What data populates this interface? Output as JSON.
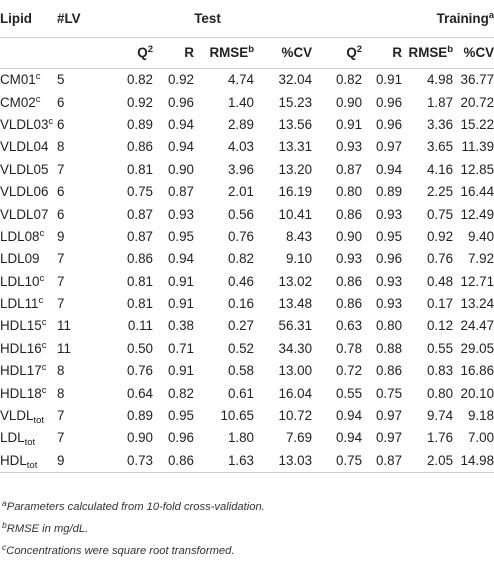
{
  "header": {
    "lipid": "Lipid",
    "lv": "#LV",
    "test_group": "Test",
    "training_group": "Training",
    "training_sup": "a",
    "columns": {
      "q2_base": "Q",
      "q2_sup": "2",
      "r": "R",
      "rmse_base": "RMSE",
      "rmse_sup": "b",
      "cv": "%CV"
    }
  },
  "rows": [
    {
      "name": "CM01",
      "sup": "c",
      "sub": "",
      "lv": "5",
      "test": [
        "0.82",
        "0.92",
        "4.74",
        "32.04"
      ],
      "train": [
        "0.82",
        "0.91",
        "4.98",
        "36.77"
      ]
    },
    {
      "name": "CM02",
      "sup": "c",
      "sub": "",
      "lv": "6",
      "test": [
        "0.92",
        "0.96",
        "1.40",
        "15.23"
      ],
      "train": [
        "0.90",
        "0.96",
        "1.87",
        "20.72"
      ]
    },
    {
      "name": "VLDL03",
      "sup": "c",
      "sub": "",
      "lv": "6",
      "test": [
        "0.89",
        "0.94",
        "2.89",
        "13.56"
      ],
      "train": [
        "0.91",
        "0.96",
        "3.36",
        "15.22"
      ]
    },
    {
      "name": "VLDL04",
      "sup": "",
      "sub": "",
      "lv": "8",
      "test": [
        "0.86",
        "0.94",
        "4.03",
        "13.31"
      ],
      "train": [
        "0.93",
        "0.97",
        "3.65",
        "11.39"
      ]
    },
    {
      "name": "VLDL05",
      "sup": "",
      "sub": "",
      "lv": "7",
      "test": [
        "0.81",
        "0.90",
        "3.96",
        "13.20"
      ],
      "train": [
        "0.87",
        "0.94",
        "4.16",
        "12.85"
      ]
    },
    {
      "name": "VLDL06",
      "sup": "",
      "sub": "",
      "lv": "6",
      "test": [
        "0.75",
        "0.87",
        "2.01",
        "16.19"
      ],
      "train": [
        "0.80",
        "0.89",
        "2.25",
        "16.44"
      ]
    },
    {
      "name": "VLDL07",
      "sup": "",
      "sub": "",
      "lv": "6",
      "test": [
        "0.87",
        "0.93",
        "0.56",
        "10.41"
      ],
      "train": [
        "0.86",
        "0.93",
        "0.75",
        "12.49"
      ]
    },
    {
      "name": "LDL08",
      "sup": "c",
      "sub": "",
      "lv": "9",
      "test": [
        "0.87",
        "0.95",
        "0.76",
        "8.43"
      ],
      "train": [
        "0.90",
        "0.95",
        "0.92",
        "9.40"
      ]
    },
    {
      "name": "LDL09",
      "sup": "",
      "sub": "",
      "lv": "7",
      "test": [
        "0.86",
        "0.94",
        "0.82",
        "9.10"
      ],
      "train": [
        "0.93",
        "0.96",
        "0.76",
        "7.92"
      ]
    },
    {
      "name": "LDL10",
      "sup": "c",
      "sub": "",
      "lv": "7",
      "test": [
        "0.81",
        "0.91",
        "0.46",
        "13.02"
      ],
      "train": [
        "0.86",
        "0.93",
        "0.48",
        "12.71"
      ]
    },
    {
      "name": "LDL11",
      "sup": "c",
      "sub": "",
      "lv": "7",
      "test": [
        "0.81",
        "0.91",
        "0.16",
        "13.48"
      ],
      "train": [
        "0.86",
        "0.93",
        "0.17",
        "13.24"
      ]
    },
    {
      "name": "HDL15",
      "sup": "c",
      "sub": "",
      "lv": "11",
      "test": [
        "0.11",
        "0.38",
        "0.27",
        "56.31"
      ],
      "train": [
        "0.63",
        "0.80",
        "0.12",
        "24.47"
      ]
    },
    {
      "name": "HDL16",
      "sup": "c",
      "sub": "",
      "lv": "11",
      "test": [
        "0.50",
        "0.71",
        "0.52",
        "34.30"
      ],
      "train": [
        "0.78",
        "0.88",
        "0.55",
        "29.05"
      ]
    },
    {
      "name": "HDL17",
      "sup": "c",
      "sub": "",
      "lv": "8",
      "test": [
        "0.76",
        "0.91",
        "0.58",
        "13.00"
      ],
      "train": [
        "0.72",
        "0.86",
        "0.83",
        "16.86"
      ]
    },
    {
      "name": "HDL18",
      "sup": "c",
      "sub": "",
      "lv": "8",
      "test": [
        "0.64",
        "0.82",
        "0.61",
        "16.04"
      ],
      "train": [
        "0.55",
        "0.75",
        "0.80",
        "20.10"
      ]
    },
    {
      "name": "VLDL",
      "sup": "",
      "sub": "tot",
      "lv": "7",
      "test": [
        "0.89",
        "0.95",
        "10.65",
        "10.72"
      ],
      "train": [
        "0.94",
        "0.97",
        "9.74",
        "9.18"
      ]
    },
    {
      "name": "LDL",
      "sup": "",
      "sub": "tot",
      "lv": "7",
      "test": [
        "0.90",
        "0.96",
        "1.80",
        "7.69"
      ],
      "train": [
        "0.94",
        "0.97",
        "1.76",
        "7.00"
      ]
    },
    {
      "name": "HDL",
      "sup": "",
      "sub": "tot",
      "lv": "9",
      "test": [
        "0.73",
        "0.86",
        "1.63",
        "13.03"
      ],
      "train": [
        "0.75",
        "0.87",
        "2.05",
        "14.98"
      ]
    }
  ],
  "footnotes": [
    {
      "mark": "a",
      "text": "Parameters calculated from 10-fold cross-validation."
    },
    {
      "mark": "b",
      "text": "RMSE in mg/dL."
    },
    {
      "mark": "c",
      "text": "Concentrations were square root transformed."
    }
  ]
}
